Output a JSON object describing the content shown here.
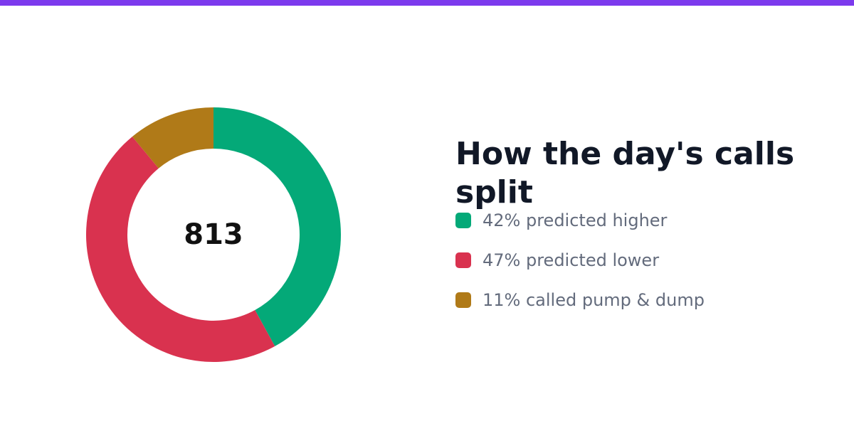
{
  "colors": {
    "accent_bar": "#7c3aed",
    "higher": "#04a978",
    "lower": "#d9324f",
    "pump_dump": "#b07a18",
    "title": "#111827",
    "legend_text": "#636b7c"
  },
  "chart_data": {
    "type": "pie",
    "variant": "donut",
    "title": "How the day's calls split",
    "center_label": "813",
    "slices": [
      {
        "label": "42% predicted higher",
        "value": 42,
        "color": "#04a978"
      },
      {
        "label": "47% predicted lower",
        "value": 47,
        "color": "#d9324f"
      },
      {
        "label": "11% called pump & dump",
        "value": 11,
        "color": "#b07a18"
      }
    ],
    "legend_position": "right"
  }
}
